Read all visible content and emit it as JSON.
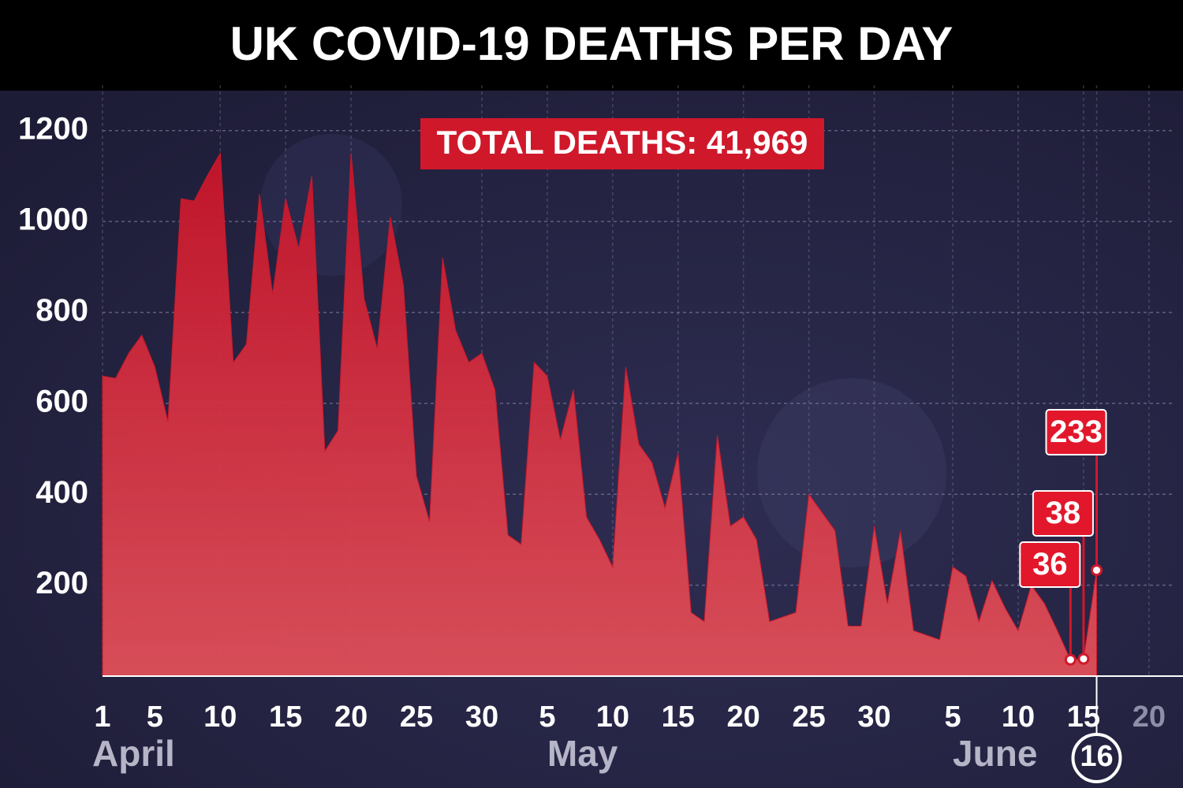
{
  "chart_data": {
    "type": "area",
    "title": "UK COVID-19 DEATHS PER DAY",
    "annotation": "TOTAL DEATHS: 41,969",
    "color": "#d0182b",
    "x": [
      1,
      2,
      3,
      4,
      5,
      6,
      7,
      8,
      9,
      10,
      11,
      12,
      13,
      14,
      15,
      16,
      17,
      18,
      19,
      20,
      21,
      22,
      23,
      24,
      25,
      26,
      27,
      28,
      29,
      30,
      31,
      32,
      33,
      34,
      35,
      36,
      37,
      38,
      39,
      40,
      41,
      42,
      43,
      44,
      45,
      46,
      47,
      48,
      49,
      50,
      51,
      52,
      53,
      54,
      55,
      56,
      57,
      58,
      59,
      60,
      61,
      62,
      63,
      64,
      65,
      66,
      67,
      68,
      69,
      70,
      71,
      72,
      73,
      74,
      75,
      76,
      77
    ],
    "values": [
      660,
      655,
      710,
      750,
      680,
      560,
      1050,
      1045,
      1100,
      1150,
      690,
      730,
      1060,
      840,
      1050,
      940,
      1100,
      495,
      540,
      1150,
      830,
      720,
      1010,
      860,
      440,
      340,
      920,
      760,
      690,
      710,
      630,
      310,
      290,
      690,
      660,
      520,
      630,
      350,
      300,
      240,
      680,
      510,
      470,
      370,
      490,
      140,
      120,
      530,
      330,
      350,
      300,
      120,
      130,
      140,
      400,
      360,
      320,
      110,
      110,
      330,
      160,
      320,
      100,
      90,
      80,
      240,
      220,
      120,
      210,
      150,
      100,
      200,
      160,
      100,
      36,
      38,
      233
    ],
    "labeled_points": [
      75,
      76,
      77
    ],
    "xlim": [
      1,
      83
    ],
    "ylim": [
      0,
      1300
    ],
    "yticks": [
      200,
      400,
      600,
      800,
      1000,
      1200
    ],
    "xticks": [
      {
        "value": 1,
        "label": "1"
      },
      {
        "value": 5,
        "label": "5"
      },
      {
        "value": 10,
        "label": "10"
      },
      {
        "value": 15,
        "label": "15"
      },
      {
        "value": 20,
        "label": "20"
      },
      {
        "value": 25,
        "label": "25"
      },
      {
        "value": 30,
        "label": "30"
      },
      {
        "value": 35,
        "label": "5"
      },
      {
        "value": 40,
        "label": "10"
      },
      {
        "value": 45,
        "label": "15"
      },
      {
        "value": 50,
        "label": "20"
      },
      {
        "value": 55,
        "label": "25"
      },
      {
        "value": 60,
        "label": "30"
      },
      {
        "value": 66,
        "label": "5"
      },
      {
        "value": 71,
        "label": "10"
      },
      {
        "value": 76,
        "label": "15"
      },
      {
        "value": 77,
        "label": "16"
      },
      {
        "value": 81,
        "label": "20"
      }
    ],
    "month_labels": [
      {
        "value": 1,
        "label": "April"
      },
      {
        "value": 35,
        "label": "May"
      },
      {
        "value": 66,
        "label": "June"
      }
    ],
    "grid": true
  }
}
